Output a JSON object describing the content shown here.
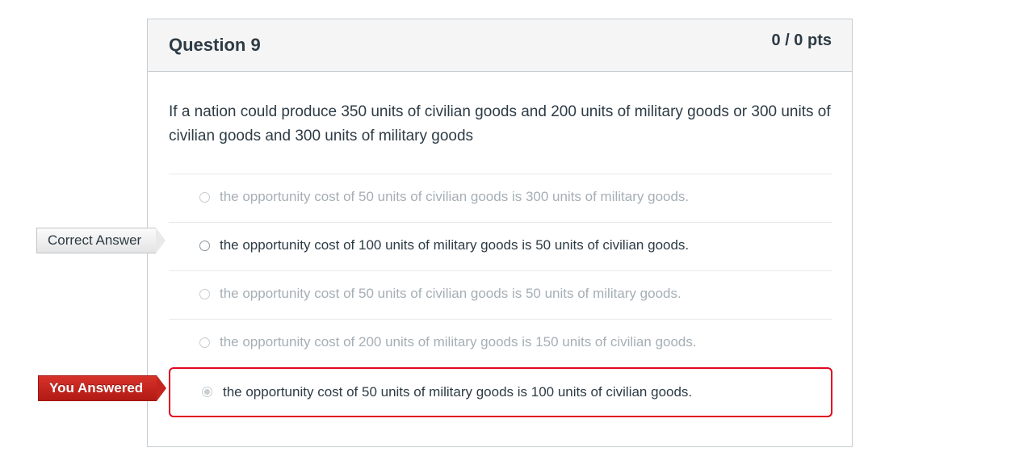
{
  "question": {
    "title": "Question 9",
    "points": "0 / 0 pts",
    "text": "If a nation could produce 350 units of civilian goods and 200 units of  military goods or 300 units of civilian goods and 300 units of military goods"
  },
  "flags": {
    "correct": "Correct Answer",
    "answered": "You Answered"
  },
  "answers": [
    {
      "label": "the opportunity cost of 50 units of civilian goods is 300 units of military goods.",
      "state": "unselected"
    },
    {
      "label": "the opportunity cost of 100 units of military goods is 50 units of civilian goods.",
      "state": "correct"
    },
    {
      "label": "the opportunity cost of 50 units of civilian goods is 50 units of military goods.",
      "state": "unselected"
    },
    {
      "label": "the opportunity cost of 200 units of military goods is 150 units of civilian goods.",
      "state": "unselected"
    },
    {
      "label": "the opportunity cost of 50 units of military goods is 100 units of civilian goods.",
      "state": "selected"
    }
  ],
  "colors": {
    "incorrect_border": "#e0061f",
    "answered_flag": "#c4241d",
    "text": "#2d3b45",
    "muted_text": "#a5afb5"
  }
}
